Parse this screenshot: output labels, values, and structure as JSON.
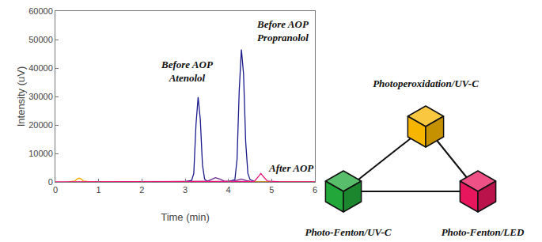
{
  "chart_data": {
    "type": "line",
    "x_label": "Time (min)",
    "y_label": "Intensity (uV)",
    "xlim": [
      0,
      6
    ],
    "xticks": [
      0,
      1,
      2,
      3,
      4,
      5,
      6
    ],
    "ylim": [
      0,
      60000
    ],
    "yticks": [
      0,
      10000,
      20000,
      30000,
      40000,
      50000,
      60000
    ],
    "grid": false,
    "series": [
      {
        "color": "#1a1a8c",
        "x": [
          1.7,
          2.0,
          2.5,
          3.0,
          3.15,
          3.2,
          3.25,
          3.3,
          3.35,
          3.4,
          3.45,
          3.5,
          3.6,
          3.8,
          4.0,
          4.15,
          4.2,
          4.25,
          4.3,
          4.35,
          4.4,
          4.45,
          4.5,
          4.6,
          4.8,
          5.0,
          5.5,
          6.0
        ],
        "values": [
          0,
          0,
          0,
          100,
          500,
          3000,
          20000,
          29800,
          22000,
          6000,
          1000,
          300,
          100,
          50,
          100,
          800,
          8000,
          32000,
          46500,
          38000,
          14000,
          3000,
          800,
          200,
          100,
          50,
          0,
          0
        ]
      },
      {
        "color": "#6a2a8c",
        "x": [
          1.7,
          2.5,
          3.0,
          3.5,
          3.6,
          3.7,
          3.8,
          3.9,
          4.1,
          4.2,
          4.3,
          4.4,
          4.5,
          5.0,
          5.5,
          6.0
        ],
        "values": [
          0,
          0,
          100,
          200,
          800,
          1500,
          1000,
          300,
          200,
          600,
          1000,
          500,
          200,
          100,
          50,
          0
        ]
      },
      {
        "color": "#f0a800",
        "x": [
          0.3,
          0.45,
          0.5,
          0.55,
          0.6,
          0.65,
          0.8,
          1.5,
          3.0,
          4.5,
          6.0
        ],
        "values": [
          0,
          300,
          1000,
          1300,
          1000,
          300,
          0,
          0,
          0,
          0,
          0
        ]
      },
      {
        "color": "#e8177d",
        "x": [
          0,
          1.0,
          2.0,
          3.0,
          4.0,
          4.6,
          4.7,
          4.75,
          4.8,
          4.9,
          5.2,
          6.0
        ],
        "values": [
          0,
          0,
          0,
          0,
          0,
          200,
          2000,
          3000,
          2000,
          300,
          0,
          0
        ]
      }
    ],
    "annotations": [
      {
        "text": "Before AOP\nAtenolol",
        "x": 3.05,
        "y": 34000
      },
      {
        "text": "Before AOP\nPropranolol",
        "x": 5.25,
        "y": 48000
      },
      {
        "text": "After AOP",
        "x": 5.45,
        "y": 2200
      }
    ]
  },
  "diagram": {
    "nodes": [
      {
        "label": "Photoperoxidation/UV-C",
        "color": "#f7b500"
      },
      {
        "label": "Photo-Fenton/UV-C",
        "color": "#22a83a"
      },
      {
        "label": "Photo-Fenton/LED",
        "color": "#e8175d"
      }
    ]
  }
}
